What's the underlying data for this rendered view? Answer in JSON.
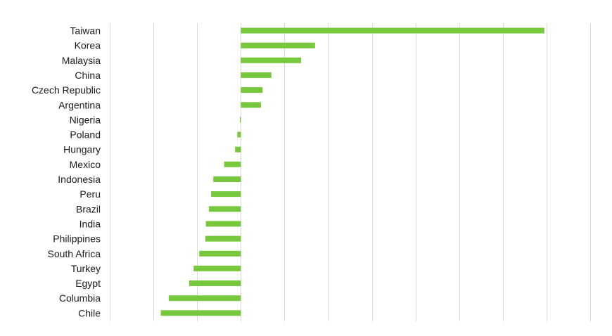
{
  "chart_data": {
    "type": "bar",
    "orientation": "horizontal",
    "categories": [
      "Taiwan",
      "Korea",
      "Malaysia",
      "China",
      "Czech Republic",
      "Argentina",
      "Nigeria",
      "Poland",
      "Hungary",
      "Mexico",
      "Indonesia",
      "Peru",
      "Brazil",
      "India",
      "Philippines",
      "South Africa",
      "Turkey",
      "Egypt",
      "Columbia",
      "Chile"
    ],
    "values": [
      6.95,
      1.7,
      1.38,
      0.7,
      0.5,
      0.46,
      -0.02,
      -0.08,
      -0.13,
      -0.38,
      -0.63,
      -0.68,
      -0.73,
      -0.8,
      -0.81,
      -0.95,
      -1.08,
      -1.18,
      -1.65,
      -1.83
    ],
    "xlim": [
      -3,
      8
    ],
    "grid": true,
    "bar_color": "#77c83c",
    "grid_color": "#d9d9d9",
    "title": "",
    "xlabel": "",
    "ylabel": ""
  }
}
